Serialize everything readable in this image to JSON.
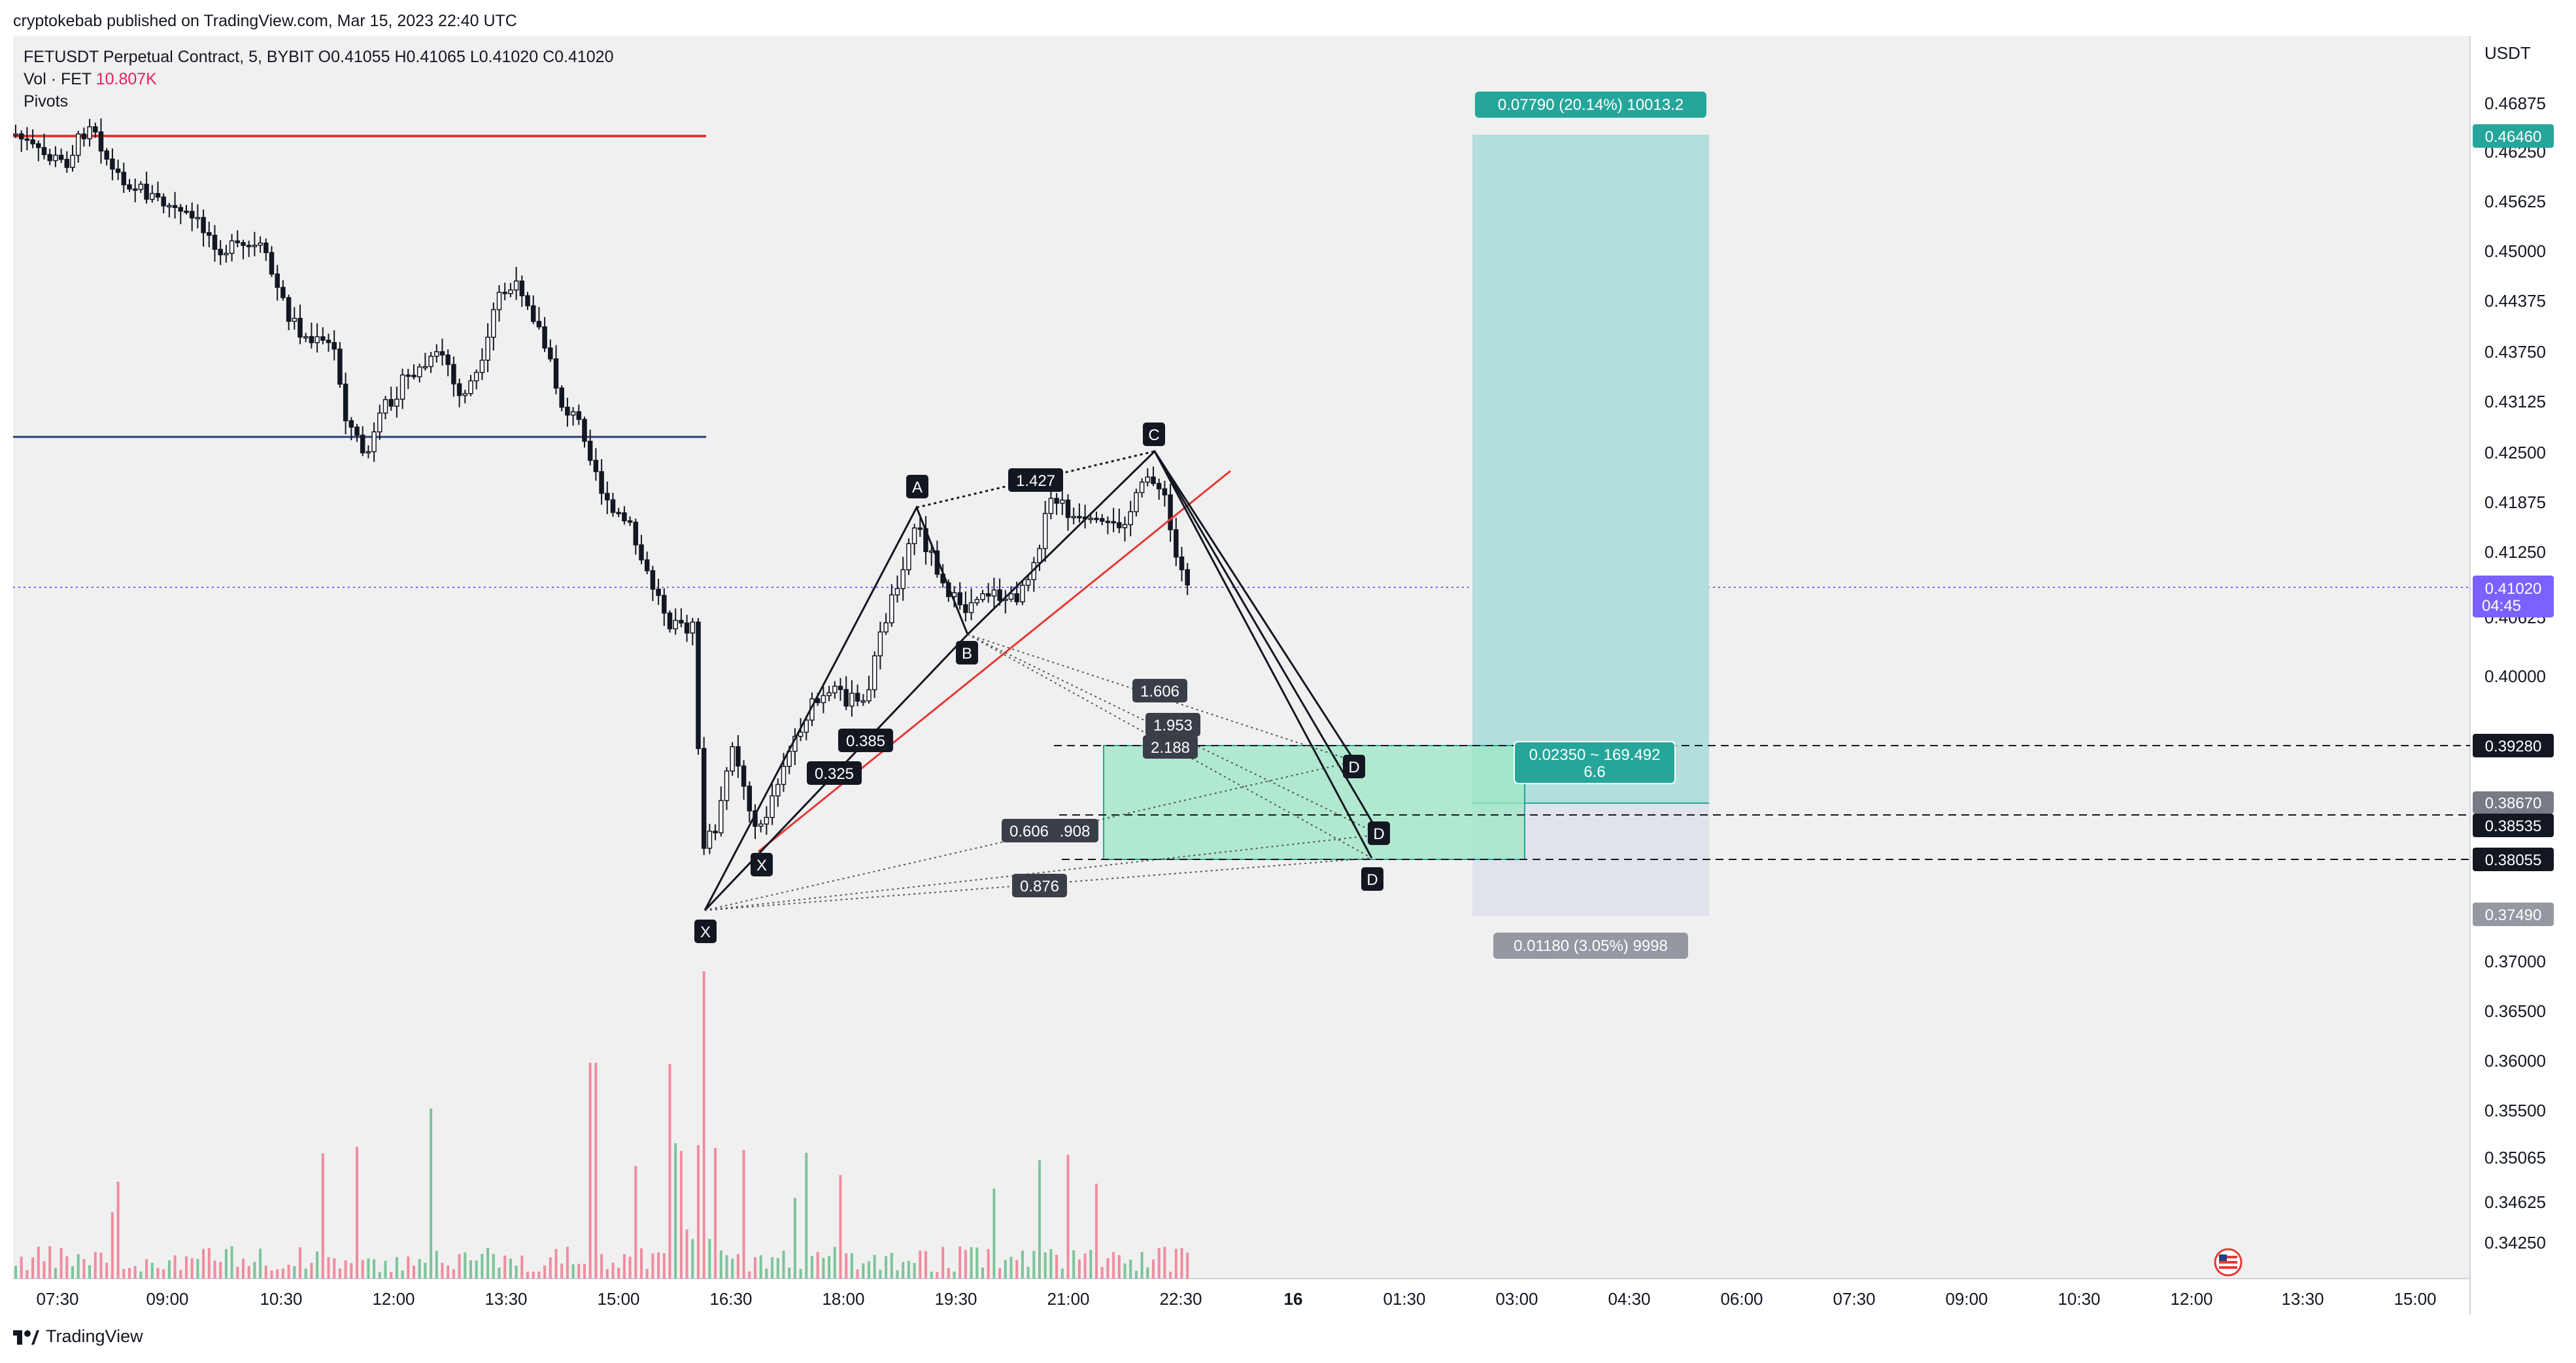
{
  "header": {
    "published_by": "cryptokebab published on TradingView.com, Mar 15, 2023 22:40 UTC"
  },
  "legend": {
    "symbol": "FETUSDT Perpetual Contract, 5, BYBIT",
    "open": "O0.41055",
    "high": "H0.41065",
    "low": "L0.41020",
    "close": "C0.41020",
    "vol_label": "Vol · FET",
    "vol_value": "10.807K",
    "indicator": "Pivots"
  },
  "axis": {
    "currency": "USDT",
    "price_ticks": [
      "0.46875",
      "0.46250",
      "0.45625",
      "0.45000",
      "0.44375",
      "0.43750",
      "0.43125",
      "0.42500",
      "0.41875",
      "0.41250",
      "0.40625",
      "0.40000",
      "0.37000",
      "0.36500",
      "0.36000",
      "0.35500",
      "0.35065",
      "0.34625",
      "0.34250"
    ],
    "time_ticks": [
      "07:30",
      "09:00",
      "10:30",
      "12:00",
      "13:30",
      "15:00",
      "16:30",
      "18:00",
      "19:30",
      "21:00",
      "22:30",
      "16",
      "01:30",
      "03:00",
      "04:30",
      "06:00",
      "07:30",
      "09:00",
      "10:30",
      "12:00",
      "13:30",
      "15:00"
    ]
  },
  "price_tags": {
    "target": "0.46460",
    "last": "0.41020",
    "countdown": "04:45",
    "d1": "0.39280",
    "mid": "0.38670",
    "d2": "0.38535",
    "d3": "0.38055",
    "stop": "0.37490"
  },
  "pattern": {
    "points": [
      "X",
      "A",
      "B",
      "C",
      "D",
      "D",
      "D"
    ],
    "ratios": [
      "1.427",
      "0.385",
      "0.325",
      "1.606",
      "1.953",
      "2.188",
      "0.606",
      ".908",
      "0.876"
    ],
    "position_top": "0.07790 (20.14%) 10013.2",
    "position_mid_line1": "0.02350 ~ 169.492",
    "position_mid_line2": "6.6",
    "position_bottom": "0.01180 (3.05%) 9998"
  },
  "footer": {
    "brand": "TradingView"
  },
  "colors": {
    "up": "#26a69a",
    "down": "#ef5350",
    "candle_body": "#131722",
    "target_zone": "#b2dfdb",
    "stop_zone": "#e0e3eb",
    "d_zone": "#9be7c4",
    "last_tag": "#7b61ff",
    "pivot_red": "#e53935",
    "pivot_blue": "#2c3e7a"
  }
}
